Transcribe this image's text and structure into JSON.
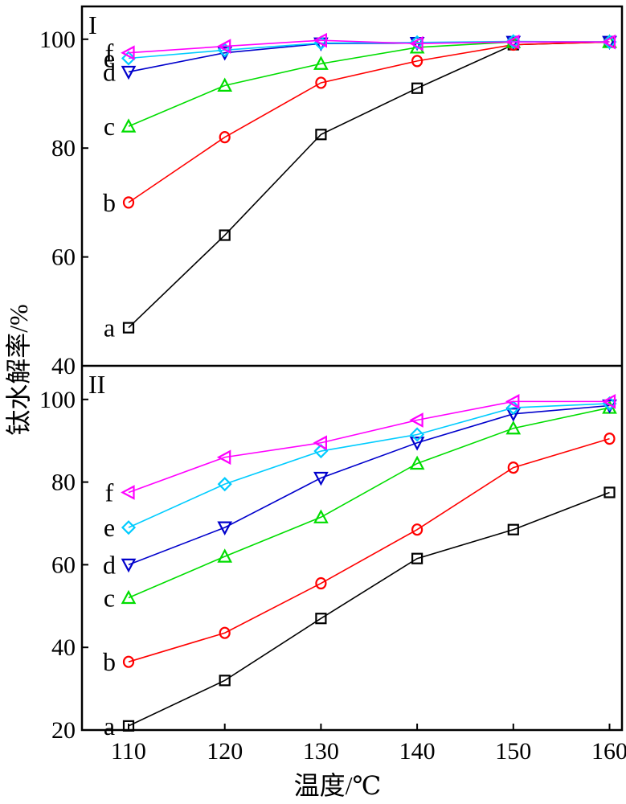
{
  "chart_data": [
    {
      "type": "line",
      "panel_label": "I",
      "x": [
        110,
        120,
        130,
        140,
        150,
        160
      ],
      "ylim": [
        40,
        104
      ],
      "yticks": [
        40,
        60,
        80,
        100
      ],
      "grid": false,
      "series": [
        {
          "name": "a",
          "color": "#000000",
          "marker": "square",
          "values": [
            47,
            64,
            82.5,
            91,
            99,
            99.5
          ]
        },
        {
          "name": "b",
          "color": "#ff0000",
          "marker": "circle",
          "values": [
            70,
            82,
            92,
            96,
            99,
            99.5
          ]
        },
        {
          "name": "c",
          "color": "#00dd00",
          "marker": "triangle-up",
          "values": [
            84,
            91.5,
            95.5,
            98.5,
            99.5,
            99.5
          ]
        },
        {
          "name": "d",
          "color": "#0000cc",
          "marker": "triangle-down",
          "values": [
            94,
            97.5,
            99.2,
            99.3,
            99.5,
            99.5
          ]
        },
        {
          "name": "e",
          "color": "#00ccff",
          "marker": "diamond",
          "values": [
            96.5,
            98,
            99.3,
            99.4,
            99.6,
            99.5
          ]
        },
        {
          "name": "f",
          "color": "#ff00ff",
          "marker": "triangle-left",
          "values": [
            97.5,
            98.7,
            99.8,
            99.2,
            99.5,
            99.5
          ]
        }
      ]
    },
    {
      "type": "line",
      "panel_label": "II",
      "x": [
        110,
        120,
        130,
        140,
        150,
        160
      ],
      "ylim": [
        20,
        104
      ],
      "yticks": [
        20,
        40,
        60,
        80,
        100
      ],
      "grid": false,
      "series": [
        {
          "name": "a",
          "color": "#000000",
          "marker": "square",
          "values": [
            21,
            32,
            47,
            61.5,
            68.5,
            77.5
          ]
        },
        {
          "name": "b",
          "color": "#ff0000",
          "marker": "circle",
          "values": [
            36.5,
            43.5,
            55.5,
            68.5,
            83.5,
            90.5
          ]
        },
        {
          "name": "c",
          "color": "#00dd00",
          "marker": "triangle-up",
          "values": [
            52,
            62,
            71.5,
            84.5,
            93,
            98
          ]
        },
        {
          "name": "d",
          "color": "#0000cc",
          "marker": "triangle-down",
          "values": [
            60,
            69,
            81,
            89.5,
            96.5,
            98.5
          ]
        },
        {
          "name": "e",
          "color": "#00ccff",
          "marker": "diamond",
          "values": [
            69,
            79.5,
            87.5,
            91.5,
            98,
            99
          ]
        },
        {
          "name": "f",
          "color": "#ff00ff",
          "marker": "triangle-left",
          "values": [
            77.5,
            86,
            89.5,
            95,
            99.5,
            99.5
          ]
        }
      ]
    }
  ],
  "xlabel": "温度/℃",
  "ylabel": "钛水解率/%",
  "xticks": [
    110,
    120,
    130,
    140,
    150,
    160
  ]
}
